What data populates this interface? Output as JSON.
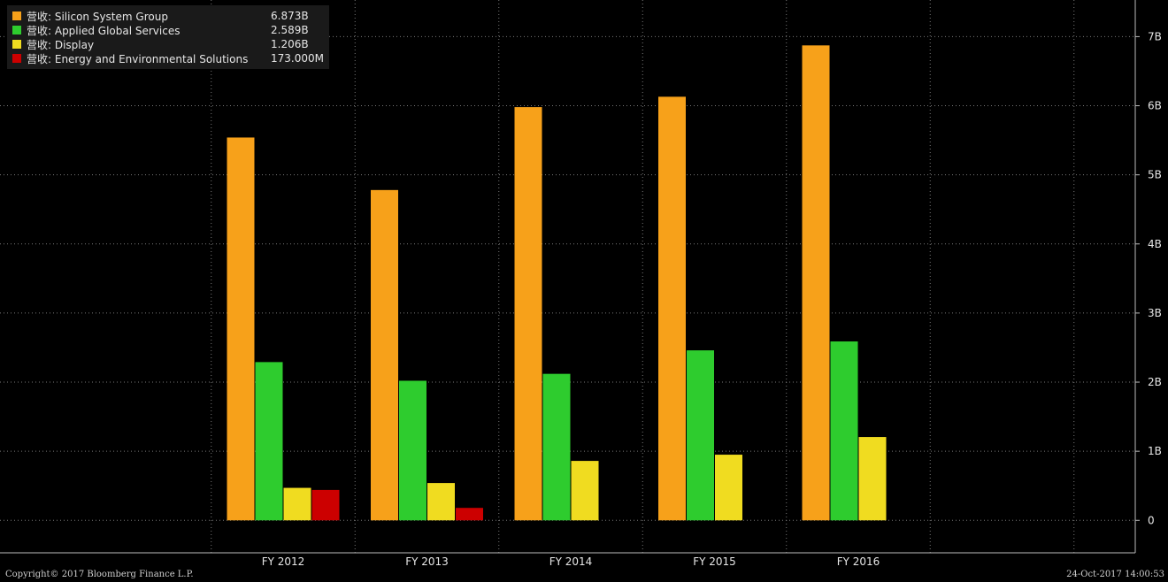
{
  "legend": [
    {
      "label": "营收: Silicon System Group",
      "value": "6.873B",
      "color": "#f7a11a"
    },
    {
      "label": "营收: Applied Global Services",
      "value": "2.589B",
      "color": "#2ecc2e"
    },
    {
      "label": "营收: Display",
      "value": "1.206B",
      "color": "#f0dc20"
    },
    {
      "label": "营收: Energy and Environmental Solutions",
      "value": "173.000M",
      "color": "#cc0000"
    }
  ],
  "footer": {
    "copyright": "Copyright© 2017 Bloomberg Finance L.P.",
    "timestamp": "24-Oct-2017 14:00:53"
  },
  "chart_data": {
    "type": "bar",
    "categories": [
      "FY 2012",
      "FY 2013",
      "FY 2014",
      "FY 2015",
      "FY 2016"
    ],
    "series": [
      {
        "name": "营收: Silicon System Group",
        "color": "#f7a11a",
        "values": [
          5.54,
          4.78,
          5.98,
          6.13,
          6.873
        ]
      },
      {
        "name": "营收: Applied Global Services",
        "color": "#2ecc2e",
        "values": [
          2.29,
          2.02,
          2.12,
          2.46,
          2.589
        ]
      },
      {
        "name": "营收: Display",
        "color": "#f0dc20",
        "values": [
          0.47,
          0.54,
          0.86,
          0.95,
          1.206
        ]
      },
      {
        "name": "营收: Energy and Environmental Solutions",
        "color": "#cc0000",
        "values": [
          0.44,
          0.18,
          null,
          null,
          null
        ]
      }
    ],
    "y_ticks": [
      {
        "value": 0,
        "label": "0"
      },
      {
        "value": 1,
        "label": "1B"
      },
      {
        "value": 2,
        "label": "2B"
      },
      {
        "value": 3,
        "label": "3B"
      },
      {
        "value": 4,
        "label": "4B"
      },
      {
        "value": 5,
        "label": "5B"
      },
      {
        "value": 6,
        "label": "6B"
      },
      {
        "value": 7,
        "label": "7B"
      }
    ],
    "ylim": [
      -0.47,
      7.53
    ],
    "y_axis_side": "right",
    "grid": true,
    "legend_position": "top-left"
  }
}
